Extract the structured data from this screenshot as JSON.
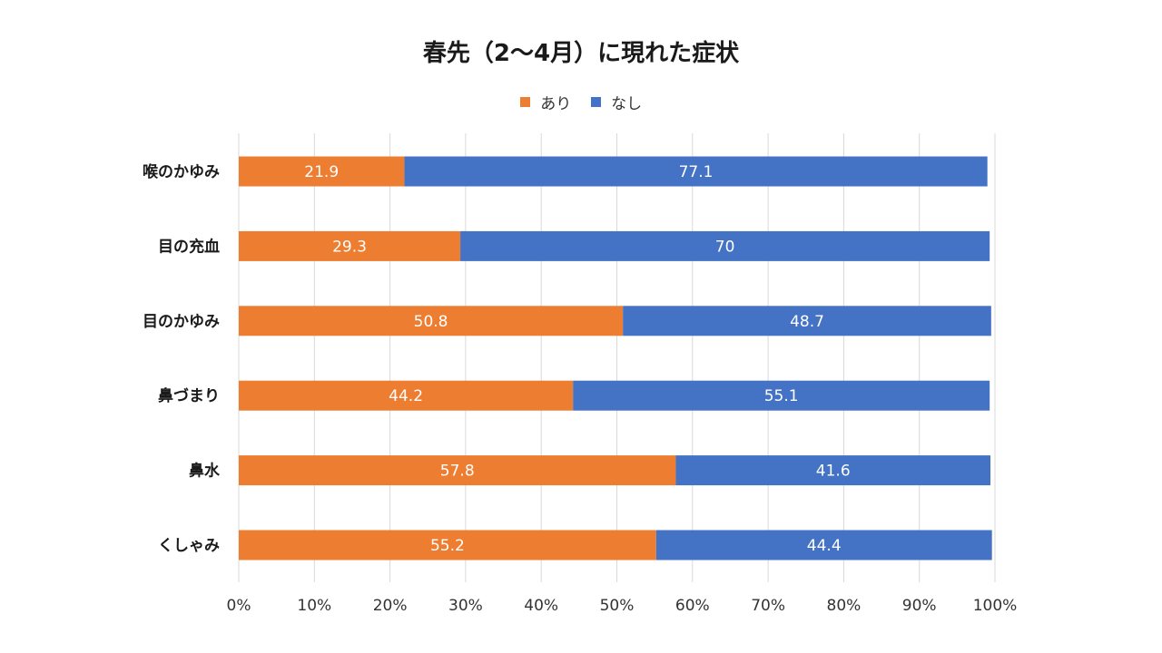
{
  "chart_data": {
    "type": "bar",
    "orientation": "horizontal",
    "stacked": true,
    "title": "春先（2〜4月）に現れた症状",
    "categories": [
      "喉のかゆみ",
      "目の充血",
      "目のかゆみ",
      "鼻づまり",
      "鼻水",
      "くしゃみ"
    ],
    "series": [
      {
        "name": "あり",
        "color": "#ED7D31",
        "values": [
          21.9,
          29.3,
          50.8,
          44.2,
          57.8,
          55.2
        ]
      },
      {
        "name": "なし",
        "color": "#4472C4",
        "values": [
          77.1,
          70,
          48.7,
          55.1,
          41.6,
          44.4
        ]
      }
    ],
    "xlim": [
      0,
      100
    ],
    "xticks": [
      "0%",
      "10%",
      "20%",
      "30%",
      "40%",
      "50%",
      "60%",
      "70%",
      "80%",
      "90%",
      "100%"
    ],
    "xlabel": "",
    "ylabel": "",
    "grid": true,
    "legend_position": "top"
  }
}
